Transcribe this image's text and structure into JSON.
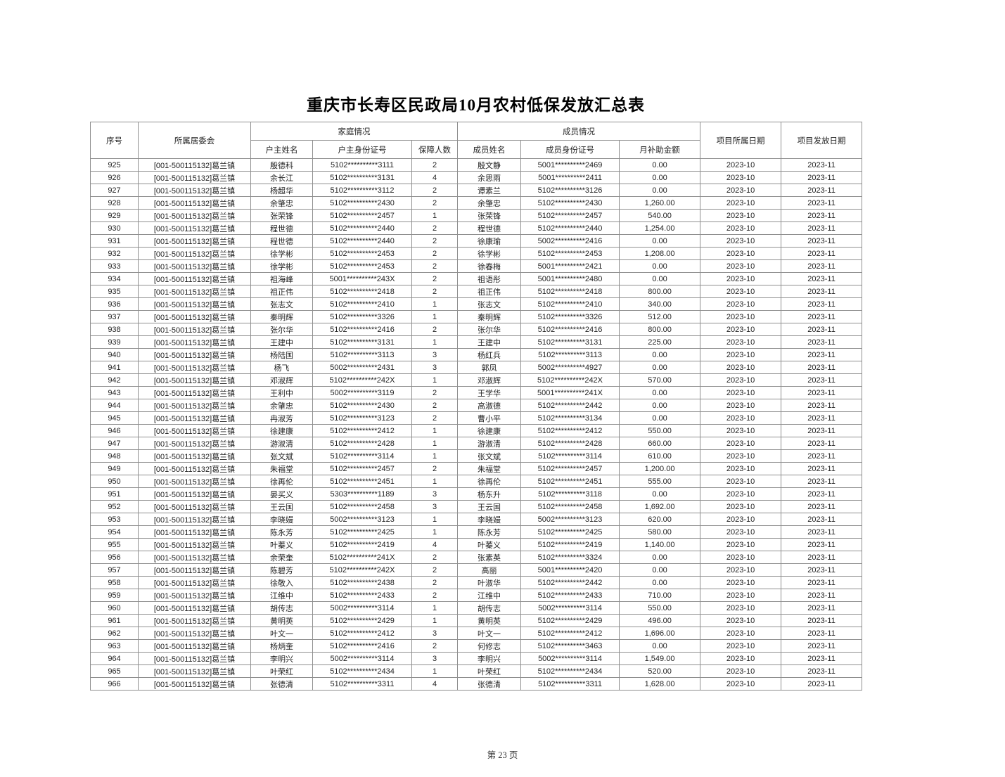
{
  "page": {
    "title": "重庆市长寿区民政局10月农村低保发放汇总表",
    "footer": "第 23 页"
  },
  "table": {
    "headers": {
      "seq": "序号",
      "committee": "所属居委会",
      "family_group": "家庭情况",
      "member_group": "成员情况",
      "head_name": "户主姓名",
      "head_id": "户主身份证号",
      "protected_count": "保障人数",
      "member_name": "成员姓名",
      "member_id": "成员身份证号",
      "monthly_subsidy": "月补助金额",
      "project_month": "项目所属日期",
      "issue_month": "项目发放日期"
    },
    "rows": [
      [
        925,
        "[001-500115132]葛兰镇",
        "殷德科",
        "5102**********3111",
        "2",
        "殷文静",
        "5001**********2469",
        "0.00",
        "2023-10",
        "2023-11"
      ],
      [
        926,
        "[001-500115132]葛兰镇",
        "余长江",
        "5102**********3131",
        "4",
        "余思雨",
        "5001**********2411",
        "0.00",
        "2023-10",
        "2023-11"
      ],
      [
        927,
        "[001-500115132]葛兰镇",
        "杨超华",
        "5102**********3112",
        "2",
        "谭素兰",
        "5102**********3126",
        "0.00",
        "2023-10",
        "2023-11"
      ],
      [
        928,
        "[001-500115132]葛兰镇",
        "余肇忠",
        "5102**********2430",
        "2",
        "余肇忠",
        "5102**********2430",
        "1,260.00",
        "2023-10",
        "2023-11"
      ],
      [
        929,
        "[001-500115132]葛兰镇",
        "张荣锋",
        "5102**********2457",
        "1",
        "张荣锋",
        "5102**********2457",
        "540.00",
        "2023-10",
        "2023-11"
      ],
      [
        930,
        "[001-500115132]葛兰镇",
        "程世德",
        "5102**********2440",
        "2",
        "程世德",
        "5102**********2440",
        "1,254.00",
        "2023-10",
        "2023-11"
      ],
      [
        931,
        "[001-500115132]葛兰镇",
        "程世德",
        "5102**********2440",
        "2",
        "徐康瑜",
        "5002**********2416",
        "0.00",
        "2023-10",
        "2023-11"
      ],
      [
        932,
        "[001-500115132]葛兰镇",
        "徐学彬",
        "5102**********2453",
        "2",
        "徐学彬",
        "5102**********2453",
        "1,208.00",
        "2023-10",
        "2023-11"
      ],
      [
        933,
        "[001-500115132]葛兰镇",
        "徐学彬",
        "5102**********2453",
        "2",
        "徐春梅",
        "5001**********2421",
        "0.00",
        "2023-10",
        "2023-11"
      ],
      [
        934,
        "[001-500115132]葛兰镇",
        "祖海峰",
        "5001**********243X",
        "2",
        "祖语彤",
        "5001**********2480",
        "0.00",
        "2023-10",
        "2023-11"
      ],
      [
        935,
        "[001-500115132]葛兰镇",
        "祖正伟",
        "5102**********2418",
        "2",
        "祖正伟",
        "5102**********2418",
        "800.00",
        "2023-10",
        "2023-11"
      ],
      [
        936,
        "[001-500115132]葛兰镇",
        "张志文",
        "5102**********2410",
        "1",
        "张志文",
        "5102**********2410",
        "340.00",
        "2023-10",
        "2023-11"
      ],
      [
        937,
        "[001-500115132]葛兰镇",
        "秦明辉",
        "5102**********3326",
        "1",
        "秦明辉",
        "5102**********3326",
        "512.00",
        "2023-10",
        "2023-11"
      ],
      [
        938,
        "[001-500115132]葛兰镇",
        "张尔华",
        "5102**********2416",
        "2",
        "张尔华",
        "5102**********2416",
        "800.00",
        "2023-10",
        "2023-11"
      ],
      [
        939,
        "[001-500115132]葛兰镇",
        "王建中",
        "5102**********3131",
        "1",
        "王建中",
        "5102**********3131",
        "225.00",
        "2023-10",
        "2023-11"
      ],
      [
        940,
        "[001-500115132]葛兰镇",
        "杨陆国",
        "5102**********3113",
        "3",
        "杨红兵",
        "5102**********3113",
        "0.00",
        "2023-10",
        "2023-11"
      ],
      [
        941,
        "[001-500115132]葛兰镇",
        "杨飞",
        "5002**********2431",
        "3",
        "郭凤",
        "5002**********4927",
        "0.00",
        "2023-10",
        "2023-11"
      ],
      [
        942,
        "[001-500115132]葛兰镇",
        "邓淑辉",
        "5102**********242X",
        "1",
        "邓淑辉",
        "5102**********242X",
        "570.00",
        "2023-10",
        "2023-11"
      ],
      [
        943,
        "[001-500115132]葛兰镇",
        "王利中",
        "5002**********3119",
        "2",
        "王学华",
        "5001**********241X",
        "0.00",
        "2023-10",
        "2023-11"
      ],
      [
        944,
        "[001-500115132]葛兰镇",
        "余肇忠",
        "5102**********2430",
        "2",
        "高淑德",
        "5102**********2442",
        "0.00",
        "2023-10",
        "2023-11"
      ],
      [
        945,
        "[001-500115132]葛兰镇",
        "冉淑芳",
        "5102**********3123",
        "2",
        "曹小平",
        "5102**********3134",
        "0.00",
        "2023-10",
        "2023-11"
      ],
      [
        946,
        "[001-500115132]葛兰镇",
        "徐建康",
        "5102**********2412",
        "1",
        "徐建康",
        "5102**********2412",
        "550.00",
        "2023-10",
        "2023-11"
      ],
      [
        947,
        "[001-500115132]葛兰镇",
        "游淑清",
        "5102**********2428",
        "1",
        "游淑清",
        "5102**********2428",
        "660.00",
        "2023-10",
        "2023-11"
      ],
      [
        948,
        "[001-500115132]葛兰镇",
        "张文斌",
        "5102**********3114",
        "1",
        "张文斌",
        "5102**********3114",
        "610.00",
        "2023-10",
        "2023-11"
      ],
      [
        949,
        "[001-500115132]葛兰镇",
        "朱福堂",
        "5102**********2457",
        "2",
        "朱福堂",
        "5102**********2457",
        "1,200.00",
        "2023-10",
        "2023-11"
      ],
      [
        950,
        "[001-500115132]葛兰镇",
        "徐再伦",
        "5102**********2451",
        "1",
        "徐再伦",
        "5102**********2451",
        "555.00",
        "2023-10",
        "2023-11"
      ],
      [
        951,
        "[001-500115132]葛兰镇",
        "晏买义",
        "5303**********1189",
        "3",
        "杨东升",
        "5102**********3118",
        "0.00",
        "2023-10",
        "2023-11"
      ],
      [
        952,
        "[001-500115132]葛兰镇",
        "王云国",
        "5102**********2458",
        "3",
        "王云国",
        "5102**********2458",
        "1,692.00",
        "2023-10",
        "2023-11"
      ],
      [
        953,
        "[001-500115132]葛兰镇",
        "李晓嫚",
        "5002**********3123",
        "1",
        "李晓嫚",
        "5002**********3123",
        "620.00",
        "2023-10",
        "2023-11"
      ],
      [
        954,
        "[001-500115132]葛兰镇",
        "陈永芳",
        "5102**********2425",
        "1",
        "陈永芳",
        "5102**********2425",
        "580.00",
        "2023-10",
        "2023-11"
      ],
      [
        955,
        "[001-500115132]葛兰镇",
        "叶蓁义",
        "5102**********2419",
        "4",
        "叶蓁义",
        "5102**********2419",
        "1,140.00",
        "2023-10",
        "2023-11"
      ],
      [
        956,
        "[001-500115132]葛兰镇",
        "余荣奎",
        "5102**********241X",
        "2",
        "张素英",
        "5102**********3324",
        "0.00",
        "2023-10",
        "2023-11"
      ],
      [
        957,
        "[001-500115132]葛兰镇",
        "陈碧芳",
        "5102**********242X",
        "2",
        "高丽",
        "5001**********2420",
        "0.00",
        "2023-10",
        "2023-11"
      ],
      [
        958,
        "[001-500115132]葛兰镇",
        "徐敬入",
        "5102**********2438",
        "2",
        "叶淑华",
        "5102**********2442",
        "0.00",
        "2023-10",
        "2023-11"
      ],
      [
        959,
        "[001-500115132]葛兰镇",
        "江维中",
        "5102**********2433",
        "2",
        "江维中",
        "5102**********2433",
        "710.00",
        "2023-10",
        "2023-11"
      ],
      [
        960,
        "[001-500115132]葛兰镇",
        "胡传志",
        "5002**********3114",
        "1",
        "胡传志",
        "5002**********3114",
        "550.00",
        "2023-10",
        "2023-11"
      ],
      [
        961,
        "[001-500115132]葛兰镇",
        "黄明英",
        "5102**********2429",
        "1",
        "黄明英",
        "5102**********2429",
        "496.00",
        "2023-10",
        "2023-11"
      ],
      [
        962,
        "[001-500115132]葛兰镇",
        "叶文一",
        "5102**********2412",
        "3",
        "叶文一",
        "5102**********2412",
        "1,696.00",
        "2023-10",
        "2023-11"
      ],
      [
        963,
        "[001-500115132]葛兰镇",
        "杨炳奎",
        "5102**********2416",
        "2",
        "何修志",
        "5102**********3463",
        "0.00",
        "2023-10",
        "2023-11"
      ],
      [
        964,
        "[001-500115132]葛兰镇",
        "李明兴",
        "5002**********3114",
        "3",
        "李明兴",
        "5002**********3114",
        "1,549.00",
        "2023-10",
        "2023-11"
      ],
      [
        965,
        "[001-500115132]葛兰镇",
        "叶荣红",
        "5102**********2434",
        "1",
        "叶荣红",
        "5102**********2434",
        "520.00",
        "2023-10",
        "2023-11"
      ],
      [
        966,
        "[001-500115132]葛兰镇",
        "张德清",
        "5102**********3311",
        "4",
        "张德清",
        "5102**********3311",
        "1,628.00",
        "2023-10",
        "2023-11"
      ]
    ]
  }
}
